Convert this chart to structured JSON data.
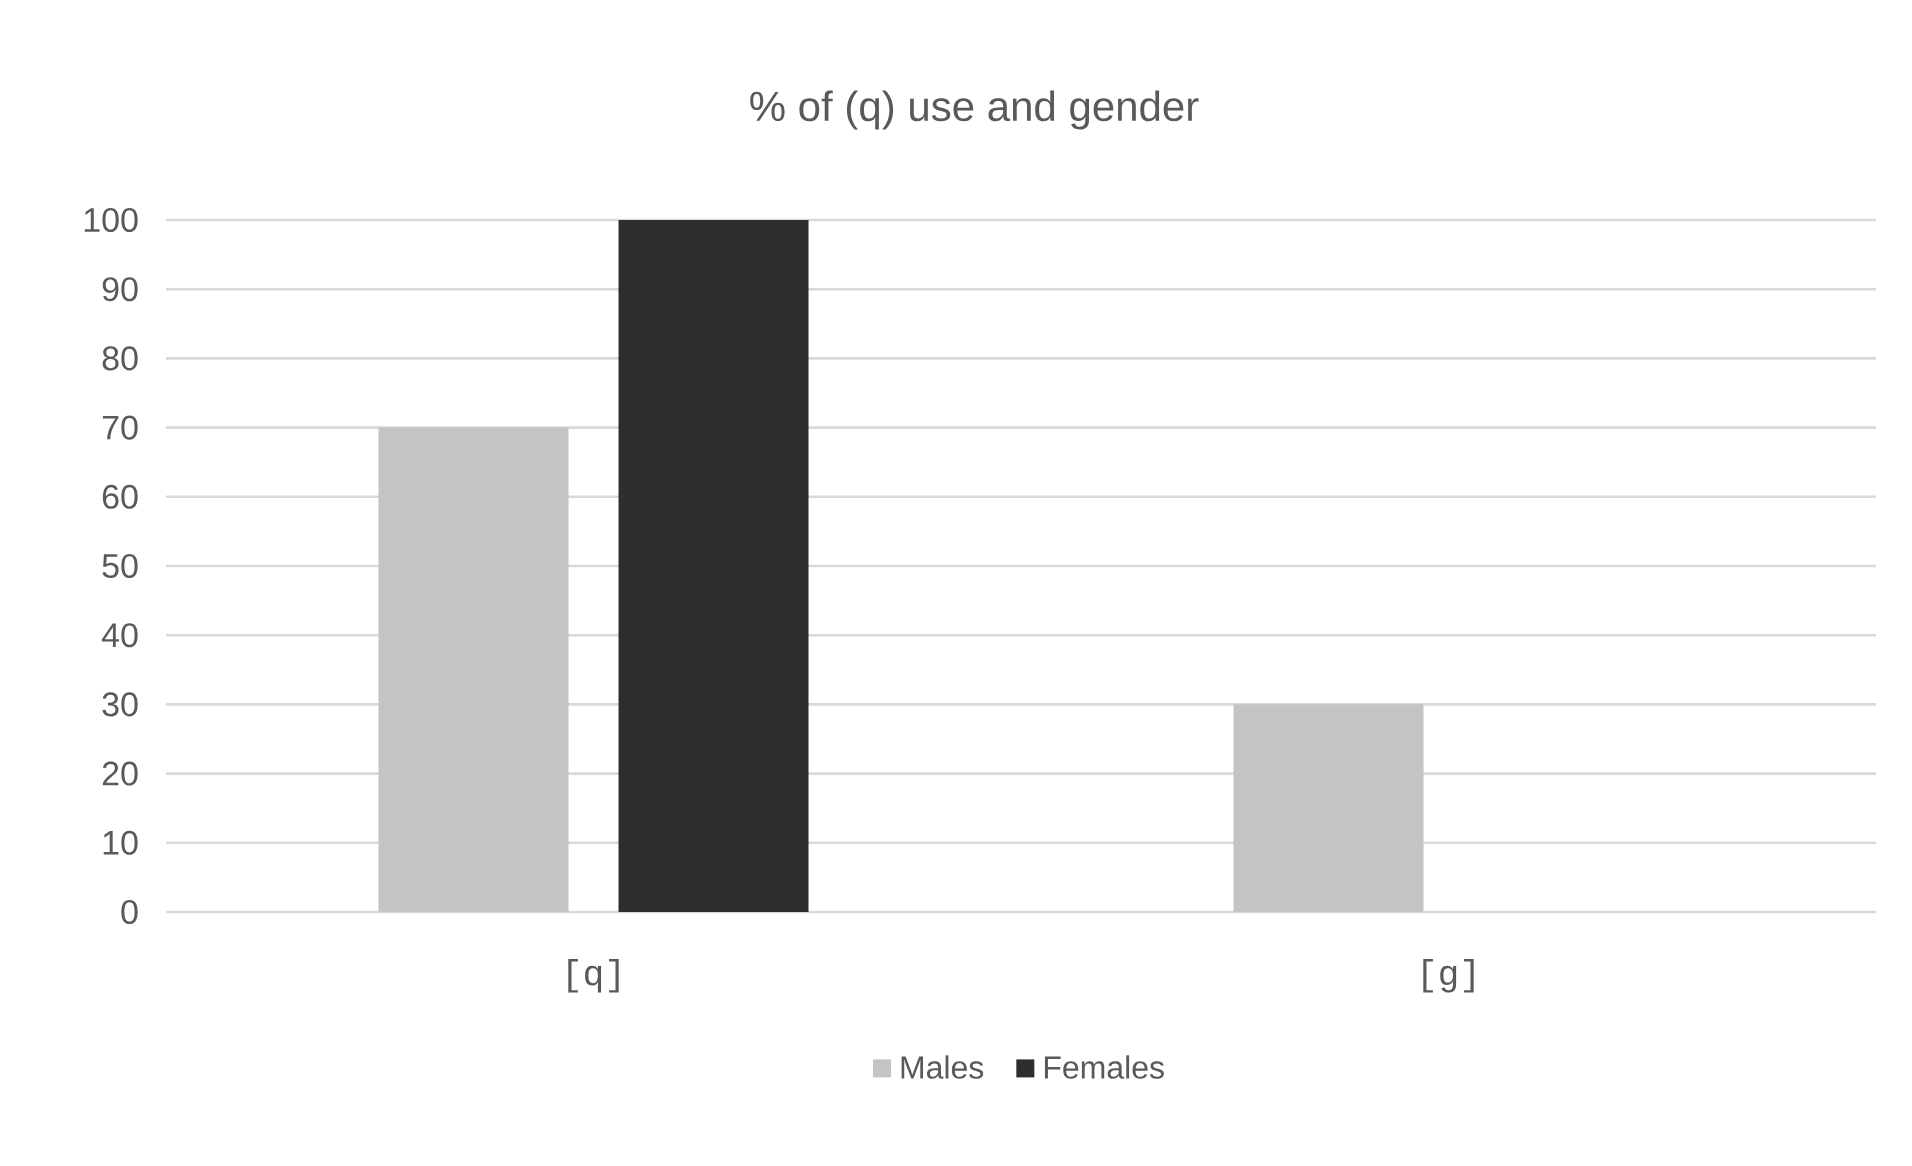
{
  "chart_data": {
    "type": "bar",
    "title": "% of (q) use and gender",
    "categories": [
      "[q]",
      "[g]"
    ],
    "series": [
      {
        "name": "Males",
        "color": "#c4c4c4",
        "values": [
          70,
          30
        ]
      },
      {
        "name": "Females",
        "color": "#2e2e2e",
        "values": [
          100,
          0
        ]
      }
    ],
    "ylim": [
      0,
      100
    ],
    "yticks": [
      0,
      10,
      20,
      30,
      40,
      50,
      60,
      70,
      80,
      90,
      100
    ],
    "grid": "y",
    "legend": "bottom"
  }
}
